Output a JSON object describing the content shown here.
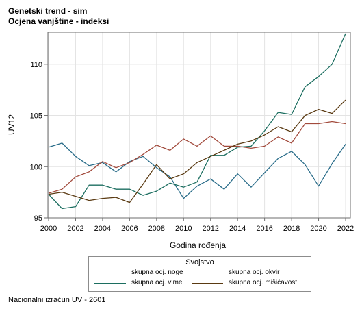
{
  "header": {
    "title": "Genetski trend - sim",
    "subtitle": "Ocjena vanjštine - indeksi"
  },
  "footnote": "Nacionalni izračun UV - 2601",
  "chart_data": {
    "type": "line",
    "title": "Genetski trend - sim",
    "subtitle": "Ocjena vanjštine - indeksi",
    "xlabel": "Godina rođenja",
    "ylabel": "UV12",
    "xlim": [
      2000,
      2022
    ],
    "ylim": [
      95,
      113
    ],
    "xticks": [
      2000,
      2002,
      2004,
      2006,
      2008,
      2010,
      2012,
      2014,
      2016,
      2018,
      2020,
      2022
    ],
    "yticks": [
      95,
      100,
      105,
      110
    ],
    "grid": true,
    "legend": {
      "title": "Svojstvo",
      "placement": "bottom"
    },
    "x": [
      2000,
      2001,
      2002,
      2003,
      2004,
      2005,
      2006,
      2007,
      2008,
      2009,
      2010,
      2011,
      2012,
      2013,
      2014,
      2015,
      2016,
      2017,
      2018,
      2019,
      2020,
      2021,
      2022
    ],
    "series": [
      {
        "name": "skupna ocj. noge",
        "color": "#2a6d8a",
        "values": [
          101.9,
          102.3,
          101.0,
          100.1,
          100.4,
          99.5,
          100.5,
          101.0,
          99.9,
          99.0,
          96.9,
          98.1,
          98.8,
          97.8,
          99.3,
          98.0,
          99.4,
          100.8,
          101.5,
          100.2,
          98.1,
          100.3,
          102.2
        ]
      },
      {
        "name": "skupna ocj. okvir",
        "color": "#a24a3c",
        "values": [
          97.4,
          97.8,
          99.0,
          99.5,
          100.5,
          99.9,
          100.4,
          101.2,
          102.1,
          101.6,
          102.7,
          102.0,
          103.0,
          102.0,
          102.0,
          101.8,
          102.0,
          102.9,
          102.3,
          104.2,
          104.2,
          104.4,
          104.2
        ]
      },
      {
        "name": "skupna ocj. vime",
        "color": "#1c6e60",
        "values": [
          97.3,
          95.9,
          96.1,
          98.2,
          98.2,
          97.8,
          97.8,
          97.2,
          97.6,
          98.4,
          98.0,
          98.5,
          101.1,
          101.1,
          101.9,
          102.0,
          103.5,
          105.3,
          105.1,
          107.8,
          108.8,
          110.0,
          113.0
        ]
      },
      {
        "name": "skupna ocj. mišićavost",
        "color": "#5a3a12",
        "values": [
          97.3,
          97.5,
          97.1,
          96.7,
          96.9,
          97.0,
          96.5,
          98.3,
          100.2,
          98.8,
          99.3,
          100.4,
          101.0,
          101.6,
          102.2,
          102.5,
          103.1,
          103.9,
          103.4,
          105.0,
          105.6,
          105.2,
          106.5
        ]
      }
    ]
  }
}
